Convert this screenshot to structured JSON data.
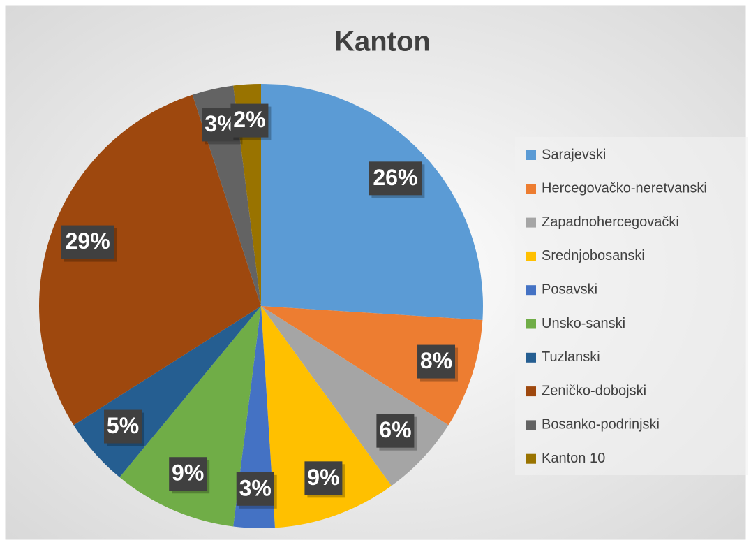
{
  "chart_data": {
    "type": "pie",
    "title": "Kanton",
    "categories": [
      "Sarajevski",
      "Hercegovačko-neretvanski",
      "Zapadnohercegovački",
      "Srednjobosanski",
      "Posavski",
      "Unsko-sanski",
      "Tuzlanski",
      "Zeničko-dobojski",
      "Bosanko-podrinjski",
      "Kanton 10"
    ],
    "values": [
      26,
      8,
      6,
      9,
      3,
      9,
      5,
      29,
      3,
      2
    ],
    "value_labels": [
      "26%",
      "8%",
      "6%",
      "9%",
      "3%",
      "9%",
      "5%",
      "29%",
      "3%",
      "2%"
    ],
    "colors": [
      "#5b9bd5",
      "#ed7d31",
      "#a5a5a5",
      "#ffc000",
      "#4472c4",
      "#70ad47",
      "#255e91",
      "#9e480e",
      "#636363",
      "#997300"
    ],
    "legend": "right"
  }
}
